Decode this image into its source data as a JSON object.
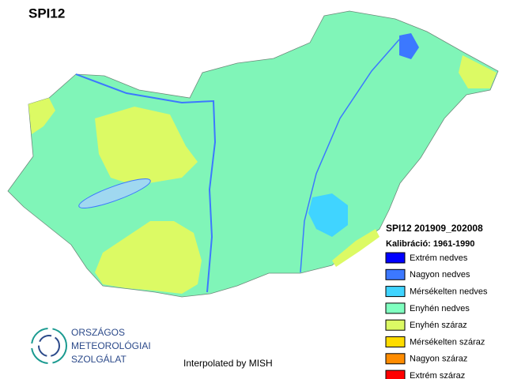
{
  "title": "SPI12",
  "legend": {
    "title": "SPI12 201909_202008",
    "subtitle": "Kalibráció: 1961-1990",
    "items": [
      {
        "name": "Extrém nedves",
        "color": "#0000ff"
      },
      {
        "name": "Nagyon nedves",
        "color": "#3c78ff"
      },
      {
        "name": "Mérsékelten nedves",
        "color": "#40d4ff"
      },
      {
        "name": "Enyhén nedves",
        "color": "#80ffc0"
      },
      {
        "name": "Enyhén száraz",
        "color": "#dcfa64"
      },
      {
        "name": "Mérsékelten száraz",
        "color": "#ffdc00"
      },
      {
        "name": "Nagyon száraz",
        "color": "#ff8c00"
      },
      {
        "name": "Extrém száraz",
        "color": "#ff0000"
      }
    ]
  },
  "credit": "Interpolated by MISH",
  "logo": {
    "lines": [
      "ORSZÁGOS",
      "METEOROLÓGIAI",
      "SZOLGÁLAT"
    ]
  }
}
